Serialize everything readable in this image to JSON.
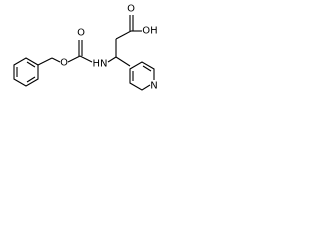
{
  "atoms": [
    "O",
    "O",
    "HN",
    "O",
    "OH",
    "N"
  ]
}
